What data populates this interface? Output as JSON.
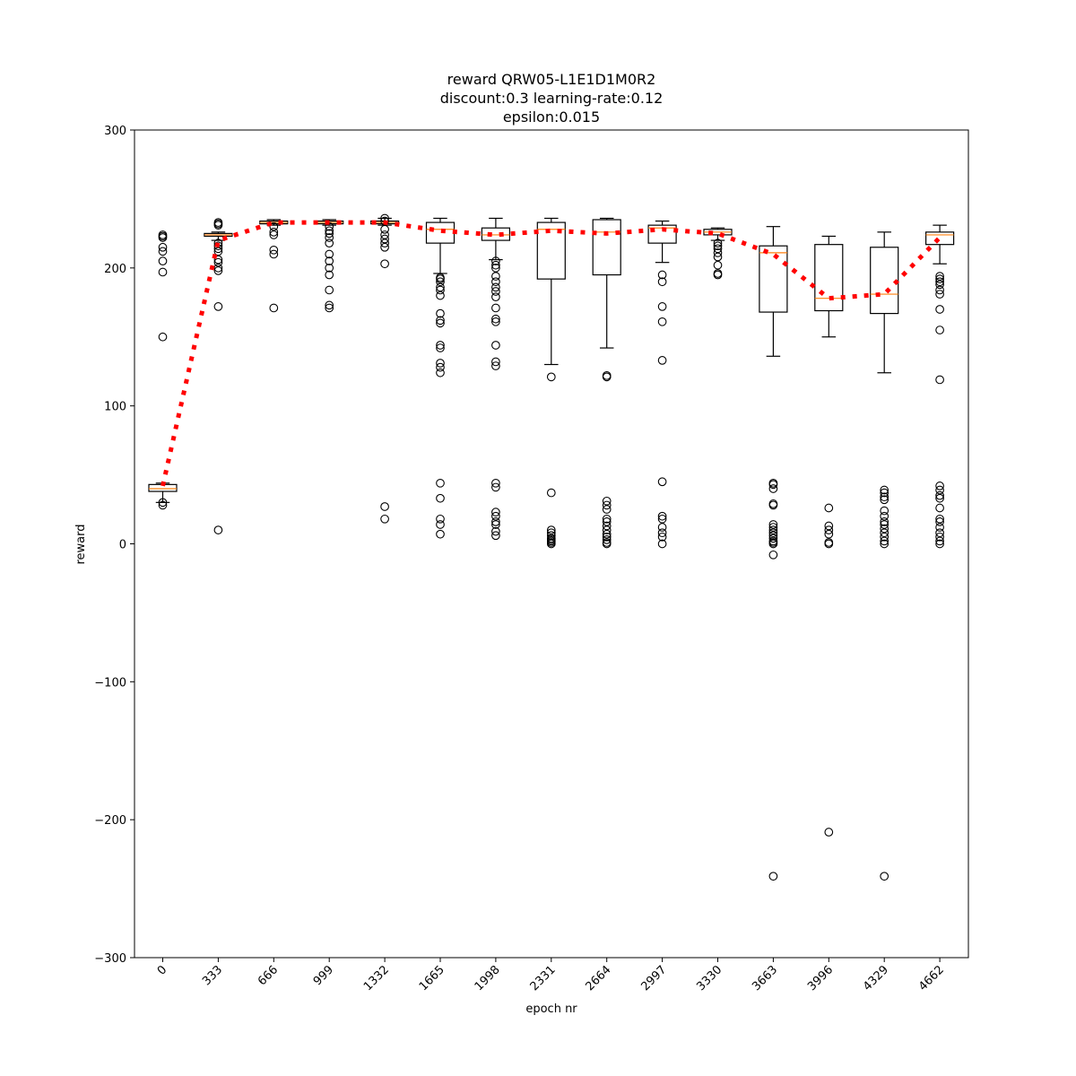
{
  "chart_data": {
    "type": "box",
    "title": [
      "reward QRW05-L1E1D1M0R2",
      "discount:0.3 learning-rate:0.12",
      "epsilon:0.015"
    ],
    "xlabel": "epoch nr",
    "ylabel": "reward",
    "ylim": [
      -300,
      300
    ],
    "yticks": [
      -300,
      -200,
      -100,
      0,
      100,
      200,
      300
    ],
    "ytick_labels": [
      "−300",
      "−200",
      "−100",
      "0",
      "100",
      "200",
      "300"
    ],
    "categories": [
      "0",
      "333",
      "666",
      "999",
      "1332",
      "1665",
      "1998",
      "2331",
      "2664",
      "2997",
      "3330",
      "3663",
      "3996",
      "4329",
      "4662"
    ],
    "boxes": [
      {
        "whislo": 30,
        "q1": 38,
        "med": 40,
        "q3": 43,
        "whishi": 44,
        "fliers": [
          224,
          223,
          222,
          215,
          212,
          205,
          197,
          150,
          30,
          28
        ]
      },
      {
        "whislo": 220,
        "q1": 223,
        "med": 224,
        "q3": 225,
        "whishi": 226,
        "fliers": [
          233,
          232,
          231,
          218,
          216,
          214,
          212,
          206,
          204,
          200,
          198,
          172,
          10
        ]
      },
      {
        "whislo": 231,
        "q1": 232,
        "med": 233,
        "q3": 234,
        "whishi": 235,
        "fliers": [
          230,
          226,
          224,
          213,
          210,
          171
        ]
      },
      {
        "whislo": 231,
        "q1": 232,
        "med": 233,
        "q3": 234,
        "whishi": 235,
        "fliers": [
          230,
          227,
          225,
          222,
          218,
          210,
          205,
          200,
          195,
          184,
          173,
          171
        ]
      },
      {
        "whislo": 231,
        "q1": 232,
        "med": 233,
        "q3": 234,
        "whishi": 236,
        "fliers": [
          236,
          234,
          228,
          224,
          221,
          218,
          215,
          203,
          27,
          18
        ]
      },
      {
        "whislo": 196,
        "q1": 218,
        "med": 228,
        "q3": 233,
        "whishi": 236,
        "fliers": [
          193,
          192,
          190,
          186,
          184,
          180,
          167,
          162,
          160,
          144,
          142,
          131,
          128,
          124,
          44,
          33,
          18,
          14,
          7
        ]
      },
      {
        "whislo": 206,
        "q1": 220,
        "med": 224,
        "q3": 229,
        "whishi": 236,
        "fliers": [
          205,
          202,
          200,
          194,
          190,
          186,
          183,
          179,
          171,
          163,
          161,
          144,
          132,
          129,
          44,
          41,
          23,
          20,
          16,
          14,
          9,
          6
        ]
      },
      {
        "whislo": 130,
        "q1": 192,
        "med": 228,
        "q3": 233,
        "whishi": 236,
        "fliers": [
          121,
          37,
          10,
          8,
          6,
          4,
          3,
          2,
          1,
          0
        ]
      },
      {
        "whislo": 142,
        "q1": 195,
        "med": 226,
        "q3": 235,
        "whishi": 236,
        "fliers": [
          122,
          121,
          31,
          28,
          25,
          18,
          16,
          13,
          10,
          7,
          5,
          3,
          1,
          0
        ]
      },
      {
        "whislo": 204,
        "q1": 218,
        "med": 229,
        "q3": 231,
        "whishi": 234,
        "fliers": [
          195,
          190,
          172,
          161,
          133,
          45,
          20,
          18,
          12,
          8,
          5,
          0
        ]
      },
      {
        "whislo": 220,
        "q1": 224,
        "med": 226,
        "q3": 228,
        "whishi": 229,
        "fliers": [
          218,
          216,
          214,
          211,
          208,
          202,
          196,
          195
        ]
      },
      {
        "whislo": 136,
        "q1": 168,
        "med": 211,
        "q3": 216,
        "whishi": 230,
        "fliers": [
          44,
          43,
          40,
          29,
          28,
          14,
          12,
          10,
          8,
          6,
          4,
          2,
          1,
          0,
          -8,
          -241
        ]
      },
      {
        "whislo": 150,
        "q1": 169,
        "med": 178,
        "q3": 217,
        "whishi": 223,
        "fliers": [
          26,
          13,
          10,
          7,
          1,
          0,
          -209
        ]
      },
      {
        "whislo": 124,
        "q1": 167,
        "med": 181,
        "q3": 215,
        "whishi": 226,
        "fliers": [
          39,
          37,
          34,
          32,
          24,
          20,
          16,
          14,
          11,
          8,
          5,
          2,
          0,
          -241
        ]
      },
      {
        "whislo": 203,
        "q1": 217,
        "med": 224,
        "q3": 226,
        "whishi": 231,
        "fliers": [
          194,
          192,
          190,
          188,
          184,
          181,
          170,
          155,
          119,
          42,
          39,
          35,
          33,
          26,
          18,
          16,
          12,
          8,
          5,
          2,
          0
        ]
      }
    ],
    "mean_line": {
      "values": [
        42,
        220,
        233,
        233,
        233,
        227,
        224,
        227,
        225,
        228,
        225,
        210,
        178,
        181,
        222
      ],
      "color": "#ff0000",
      "style": "dotted"
    },
    "median_color": "#ff7f0e"
  }
}
